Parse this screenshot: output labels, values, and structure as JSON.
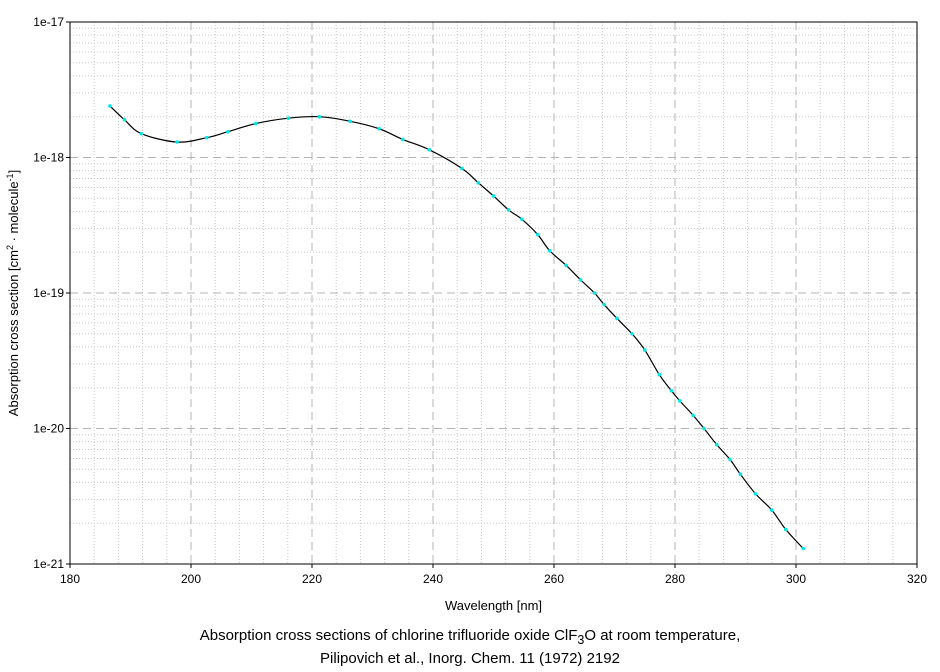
{
  "chart_data": {
    "type": "line",
    "title": "",
    "xlabel": "Wavelength [nm]",
    "ylabel": "Absorption cross section [cm² · molecule⁻¹]",
    "ylabel_parts": {
      "prefix": "Absorption cross section [cm",
      "sup1": "2",
      "middle": " · molecule",
      "sup2": "-1",
      "suffix": "]"
    },
    "xlim": [
      180,
      320
    ],
    "ylim": [
      1e-21,
      1e-17
    ],
    "yscale": "log",
    "grid": true,
    "x_ticks": [
      "180",
      "200",
      "220",
      "240",
      "260",
      "280",
      "300",
      "320"
    ],
    "y_ticks": [
      "1e-17",
      "1e-18",
      "1e-19",
      "1e-20",
      "1e-21"
    ],
    "series": [
      {
        "name": "",
        "line_color": "#000000",
        "marker_color": "#00e5e5",
        "x": [
          186.6,
          189.0,
          191.8,
          197.7,
          202.6,
          206.1,
          210.7,
          216.1,
          221.2,
          226.3,
          231.1,
          235.0,
          239.4,
          244.8,
          247.5,
          250.0,
          252.5,
          254.7,
          257.3,
          259.3,
          262.0,
          264.4,
          266.7,
          268.3,
          270.4,
          272.9,
          275.0,
          277.4,
          279.4,
          280.8,
          283.0,
          284.8,
          286.9,
          289.1,
          290.8,
          293.3,
          296.0,
          298.3,
          301.2
        ],
        "y": [
          2.4e-18,
          1.9e-18,
          1.5e-18,
          1.3e-18,
          1.4e-18,
          1.55e-18,
          1.78e-18,
          1.95e-18,
          2e-18,
          1.85e-18,
          1.63e-18,
          1.36e-18,
          1.14e-18,
          8.3e-19,
          6.5e-19,
          5.2e-19,
          4.1e-19,
          3.5e-19,
          2.7e-19,
          2.05e-19,
          1.6e-19,
          1.25e-19,
          1e-19,
          8.2e-20,
          6.5e-20,
          5e-20,
          3.8e-20,
          2.5e-20,
          1.9e-20,
          1.6e-20,
          1.25e-20,
          1e-20,
          7.6e-21,
          5.9e-21,
          4.6e-21,
          3.3e-21,
          2.5e-21,
          1.8e-21,
          1.3e-21
        ]
      }
    ]
  },
  "caption": {
    "line1_prefix": "Absorption cross sections of chlorine trifluoride oxide ClF",
    "line1_sub": "3",
    "line1_suffix": "O at room temperature,",
    "line2": "Pilipovich et al., Inorg. Chem. 11 (1972) 2192"
  }
}
